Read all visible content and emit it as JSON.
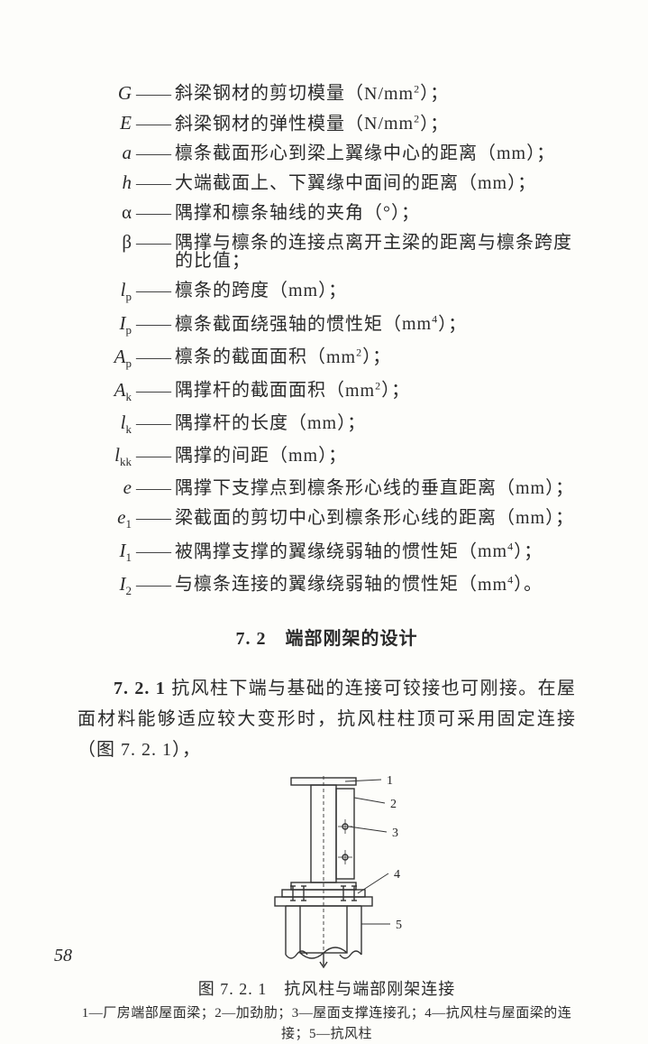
{
  "definitions": [
    {
      "sym_html": "G",
      "text_html": "斜梁钢材的剪切模量（<span class='unit'>N/mm<sup>2</sup></span>）；"
    },
    {
      "sym_html": "E",
      "text_html": "斜梁钢材的弹性模量（<span class='unit'>N/mm<sup>2</sup></span>）；"
    },
    {
      "sym_html": "a",
      "text_html": "檩条截面形心到梁上翼缘中心的距离（<span class='unit'>mm</span>）；"
    },
    {
      "sym_html": "h",
      "text_html": "大端截面上、下翼缘中面间的距离（<span class='unit'>mm</span>）；"
    },
    {
      "sym_html": "<span style='font-style:normal'>α</span>",
      "text_html": "隅撑和檩条轴线的夹角（°）；"
    },
    {
      "sym_html": "<span style='font-style:normal'>β</span>",
      "text_html": "隅撑与檩条的连接点离开主梁的距离与檩条跨度的比值；"
    },
    {
      "sym_html": "l<sub>p</sub>",
      "text_html": "檩条的跨度（<span class='unit'>mm</span>）；"
    },
    {
      "sym_html": "I<sub>p</sub>",
      "text_html": "檩条截面绕强轴的惯性矩（<span class='unit'>mm<sup>4</sup></span>）；"
    },
    {
      "sym_html": "A<sub>p</sub>",
      "text_html": "檩条的截面面积（<span class='unit'>mm<sup>2</sup></span>）；"
    },
    {
      "sym_html": "A<sub>k</sub>",
      "text_html": "隅撑杆的截面面积（<span class='unit'>mm<sup>2</sup></span>）；"
    },
    {
      "sym_html": "l<sub>k</sub>",
      "text_html": "隅撑杆的长度（<span class='unit'>mm</span>）；"
    },
    {
      "sym_html": "l<sub>kk</sub>",
      "text_html": "隅撑的间距（<span class='unit'>mm</span>）；"
    },
    {
      "sym_html": "e",
      "text_html": "隅撑下支撑点到檩条形心线的垂直距离（<span class='unit'>mm</span>）；"
    },
    {
      "sym_html": "e<sub>1</sub>",
      "text_html": "梁截面的剪切中心到檩条形心线的距离（<span class='unit'>mm</span>）；"
    },
    {
      "sym_html": "I<sub>1</sub>",
      "text_html": "被隅撑支撑的翼缘绕弱轴的惯性矩（<span class='unit'>mm<sup>4</sup></span>）；"
    },
    {
      "sym_html": "I<sub>2</sub>",
      "text_html": "与檩条连接的翼缘绕弱轴的惯性矩（<span class='unit'>mm<sup>4</sup></span>）。"
    }
  ],
  "section": {
    "number": "7. 2",
    "title": "端部刚架的设计"
  },
  "clause": {
    "number": "7. 2. 1",
    "text": "抗风柱下端与基础的连接可铰接也可刚接。在屋面材料能够适应较大变形时，抗风柱柱顶可采用固定连接（图 7. 2. 1），"
  },
  "figure": {
    "caption_number": "图 7. 2. 1",
    "caption_title": "抗风柱与端部刚架连接",
    "keys": "1—厂房端部屋面梁；2—加劲肋；3—屋面支撑连接孔；4—抗风柱与屋面梁的连接；5—抗风柱",
    "labels": [
      "1",
      "2",
      "3",
      "4",
      "5"
    ],
    "stroke": "#333333",
    "stroke_width": 1.4,
    "dash": "4,3"
  },
  "page_number": "58"
}
